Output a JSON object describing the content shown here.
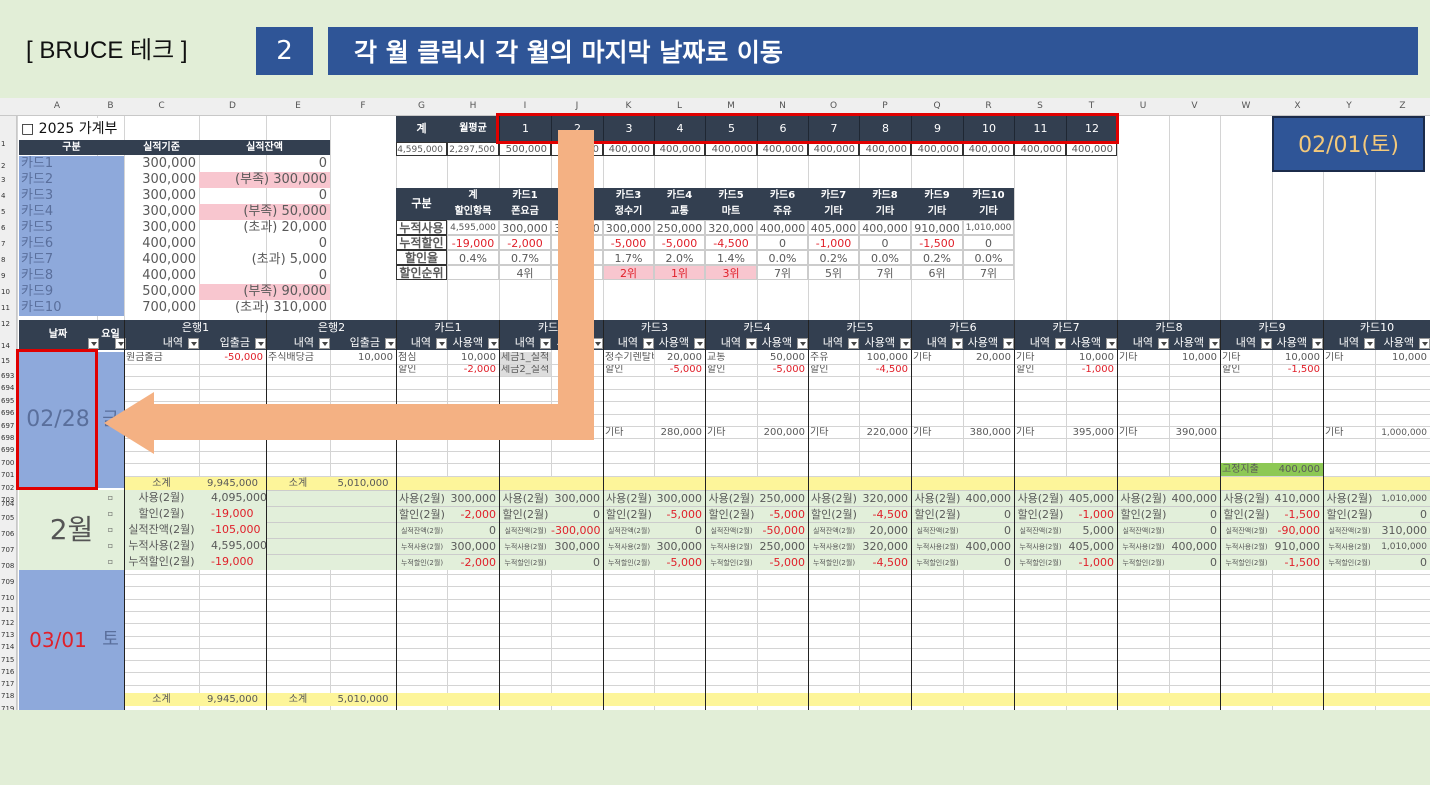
{
  "banner": {
    "title": "[ BRUCE 테크 ]",
    "step_number": "2",
    "step_description": "각 월 클릭시 각 월의 마지막 날짜로 이동"
  },
  "columns": [
    "A",
    "B",
    "C",
    "D",
    "E",
    "F",
    "G",
    "H",
    "I",
    "J",
    "K",
    "L",
    "M",
    "N",
    "O",
    "P",
    "Q",
    "R",
    "S",
    "T",
    "U",
    "V",
    "W",
    "X",
    "Y",
    "Z"
  ],
  "rows_top": [
    "1",
    "2",
    "3",
    "4",
    "5",
    "6",
    "7",
    "8",
    "9",
    "10",
    "11",
    "12"
  ],
  "rows_mid": [
    "14",
    "15",
    "693",
    "694",
    "695",
    "696",
    "697",
    "698",
    "699",
    "700",
    "701",
    "702",
    "703",
    "704",
    "705",
    "706",
    "707",
    "708",
    "709",
    "710",
    "711",
    "712",
    "713",
    "714",
    "715",
    "716",
    "717",
    "718",
    "719"
  ],
  "sheet_title": "□ 2025 가계부",
  "budget": {
    "headers": [
      "구분",
      "실적기준",
      "실적잔액"
    ],
    "rows": [
      {
        "card": "카드1",
        "base": "300,000",
        "remain": "0",
        "state": ""
      },
      {
        "card": "카드2",
        "base": "300,000",
        "remain": "(부족) 300,000",
        "state": "short"
      },
      {
        "card": "카드3",
        "base": "300,000",
        "remain": "0",
        "state": ""
      },
      {
        "card": "카드4",
        "base": "300,000",
        "remain": "(부족) 50,000",
        "state": "short"
      },
      {
        "card": "카드5",
        "base": "300,000",
        "remain": "(초과) 20,000",
        "state": ""
      },
      {
        "card": "카드6",
        "base": "400,000",
        "remain": "0",
        "state": ""
      },
      {
        "card": "카드7",
        "base": "400,000",
        "remain": "(초과) 5,000",
        "state": ""
      },
      {
        "card": "카드8",
        "base": "400,000",
        "remain": "0",
        "state": ""
      },
      {
        "card": "카드9",
        "base": "500,000",
        "remain": "(부족) 90,000",
        "state": "short"
      },
      {
        "card": "카드10",
        "base": "700,000",
        "remain": "(초과) 310,000",
        "state": ""
      }
    ]
  },
  "monthly": {
    "total_label": "계",
    "avg_label": "월평균",
    "total": "4,595,000",
    "avg": "2,297,500",
    "months": [
      "1",
      "2",
      "3",
      "4",
      "5",
      "6",
      "7",
      "8",
      "9",
      "10",
      "11",
      "12"
    ],
    "values": [
      "500,000",
      "400,000",
      "400,000",
      "400,000",
      "400,000",
      "400,000",
      "400,000",
      "400,000",
      "400,000",
      "400,000",
      "400,000",
      "400,000"
    ]
  },
  "current_date": "02/01(토)",
  "discount": {
    "corner": "구분",
    "cols": [
      {
        "name": "계",
        "item": "할인항목",
        "used": "4,595,000",
        "disc": "-19,000",
        "rate": "0.4%",
        "rank": ""
      },
      {
        "name": "카드1",
        "item": "폰요금",
        "used": "300,000",
        "disc": "-2,000",
        "rate": "0.7%",
        "rank": "4위"
      },
      {
        "name": "카드2",
        "item": "",
        "used": "300,000",
        "disc": "0",
        "rate": "0.0%",
        "rank": ""
      },
      {
        "name": "카드3",
        "item": "정수기",
        "used": "300,000",
        "disc": "-5,000",
        "rate": "1.7%",
        "rank": "2위"
      },
      {
        "name": "카드4",
        "item": "교통",
        "used": "250,000",
        "disc": "-5,000",
        "rate": "2.0%",
        "rank": "1위"
      },
      {
        "name": "카드5",
        "item": "마트",
        "used": "320,000",
        "disc": "-4,500",
        "rate": "1.4%",
        "rank": "3위"
      },
      {
        "name": "카드6",
        "item": "주유",
        "used": "400,000",
        "disc": "0",
        "rate": "0.0%",
        "rank": "7위"
      },
      {
        "name": "카드7",
        "item": "기타",
        "used": "405,000",
        "disc": "-1,000",
        "rate": "0.2%",
        "rank": "5위"
      },
      {
        "name": "카드8",
        "item": "기타",
        "used": "400,000",
        "disc": "0",
        "rate": "0.0%",
        "rank": "7위"
      },
      {
        "name": "카드9",
        "item": "기타",
        "used": "910,000",
        "disc": "-1,500",
        "rate": "0.2%",
        "rank": "6위"
      },
      {
        "name": "카드10",
        "item": "기타",
        "used": "1,010,000",
        "disc": "0",
        "rate": "0.0%",
        "rank": "7위"
      }
    ],
    "row_labels": [
      "누적사용",
      "누적할인",
      "할인율",
      "할인순위"
    ]
  },
  "ledger": {
    "date_label": "날짜",
    "day_label": "요일",
    "groups": [
      "은행1",
      "은행2",
      "카드1",
      "카드2",
      "카드3",
      "카드4",
      "카드5",
      "카드6",
      "카드7",
      "카드8",
      "카드9",
      "카드10"
    ],
    "bank_sub": [
      "내역",
      "입출금"
    ],
    "card_sub": [
      "내역",
      "사용액"
    ],
    "row693": [
      [
        "원금출금",
        "-50,000"
      ],
      [
        "주식배당금",
        "10,000"
      ],
      [
        "점심",
        "10,000"
      ],
      [
        "세금1_실적",
        ""
      ],
      [
        "정수기렌탈비",
        "20,000"
      ],
      [
        "교통",
        "50,000"
      ],
      [
        "주유",
        "100,000"
      ],
      [
        "기타",
        "20,000"
      ],
      [
        "기타",
        "10,000"
      ],
      [
        "기타",
        "10,000"
      ],
      [
        "기타",
        "10,000"
      ],
      [
        "기타",
        "10,000"
      ]
    ],
    "row694": [
      [
        "",
        ""
      ],
      [
        "",
        ""
      ],
      [
        "할인",
        "-2,000"
      ],
      [
        "세금2_실적",
        ""
      ],
      [
        "할인",
        "-5,000"
      ],
      [
        "할인",
        "-5,000"
      ],
      [
        "할인",
        "-4,500"
      ],
      [
        "",
        ""
      ],
      [
        "할인",
        "-1,000"
      ],
      [
        "",
        ""
      ],
      [
        "할인",
        "-1,500"
      ],
      [
        "",
        ""
      ]
    ],
    "row699": [
      [
        "",
        ""
      ],
      [
        "",
        ""
      ],
      [
        "",
        ""
      ],
      [
        "",
        ""
      ],
      [
        "기타",
        "280,000"
      ],
      [
        "기타",
        "200,000"
      ],
      [
        "기타",
        "220,000"
      ],
      [
        "기타",
        "380,000"
      ],
      [
        "기타",
        "395,000"
      ],
      [
        "기타",
        "390,000"
      ],
      [
        "",
        ""
      ],
      [
        "기타",
        "1,000,000"
      ]
    ],
    "fixed_label": "고정지출",
    "fixed_value": "400,000",
    "subtotal_label": "소계",
    "bank1_subtotal": "9,945,000",
    "bank2_subtotal": "5,010,000",
    "date_feb": "02/28",
    "date_feb_day": "금",
    "month_label": "2월",
    "summary_labels": [
      "사용(2월)",
      "할인(2월)",
      "실적잔액(2월)",
      "누적사용(2월)",
      "누적할인(2월)"
    ],
    "summary_bank": [
      "4,095,000",
      "-19,000",
      "-105,000",
      "4,595,000",
      "-19,000"
    ],
    "summary_cards": [
      [
        "300,000",
        "-2,000",
        "0",
        "300,000",
        "-2,000"
      ],
      [
        "300,000",
        "0",
        "-300,000",
        "300,000",
        "0"
      ],
      [
        "300,000",
        "-5,000",
        "0",
        "300,000",
        "-5,000"
      ],
      [
        "250,000",
        "-5,000",
        "-50,000",
        "250,000",
        "-5,000"
      ],
      [
        "320,000",
        "-4,500",
        "20,000",
        "320,000",
        "-4,500"
      ],
      [
        "400,000",
        "0",
        "0",
        "400,000",
        "0"
      ],
      [
        "405,000",
        "-1,000",
        "5,000",
        "405,000",
        "-1,000"
      ],
      [
        "400,000",
        "0",
        "0",
        "400,000",
        "0"
      ],
      [
        "410,000",
        "-1,500",
        "-90,000",
        "910,000",
        "-1,500"
      ],
      [
        "1,010,000",
        "0",
        "310,000",
        "1,010,000",
        "0"
      ]
    ],
    "date_mar": "03/01",
    "date_mar_day": "토"
  },
  "colors": {
    "accent": "#2f5597",
    "header_dark": "#333f50",
    "highlight_red": "#e00000",
    "arrow": "#f4b183"
  }
}
